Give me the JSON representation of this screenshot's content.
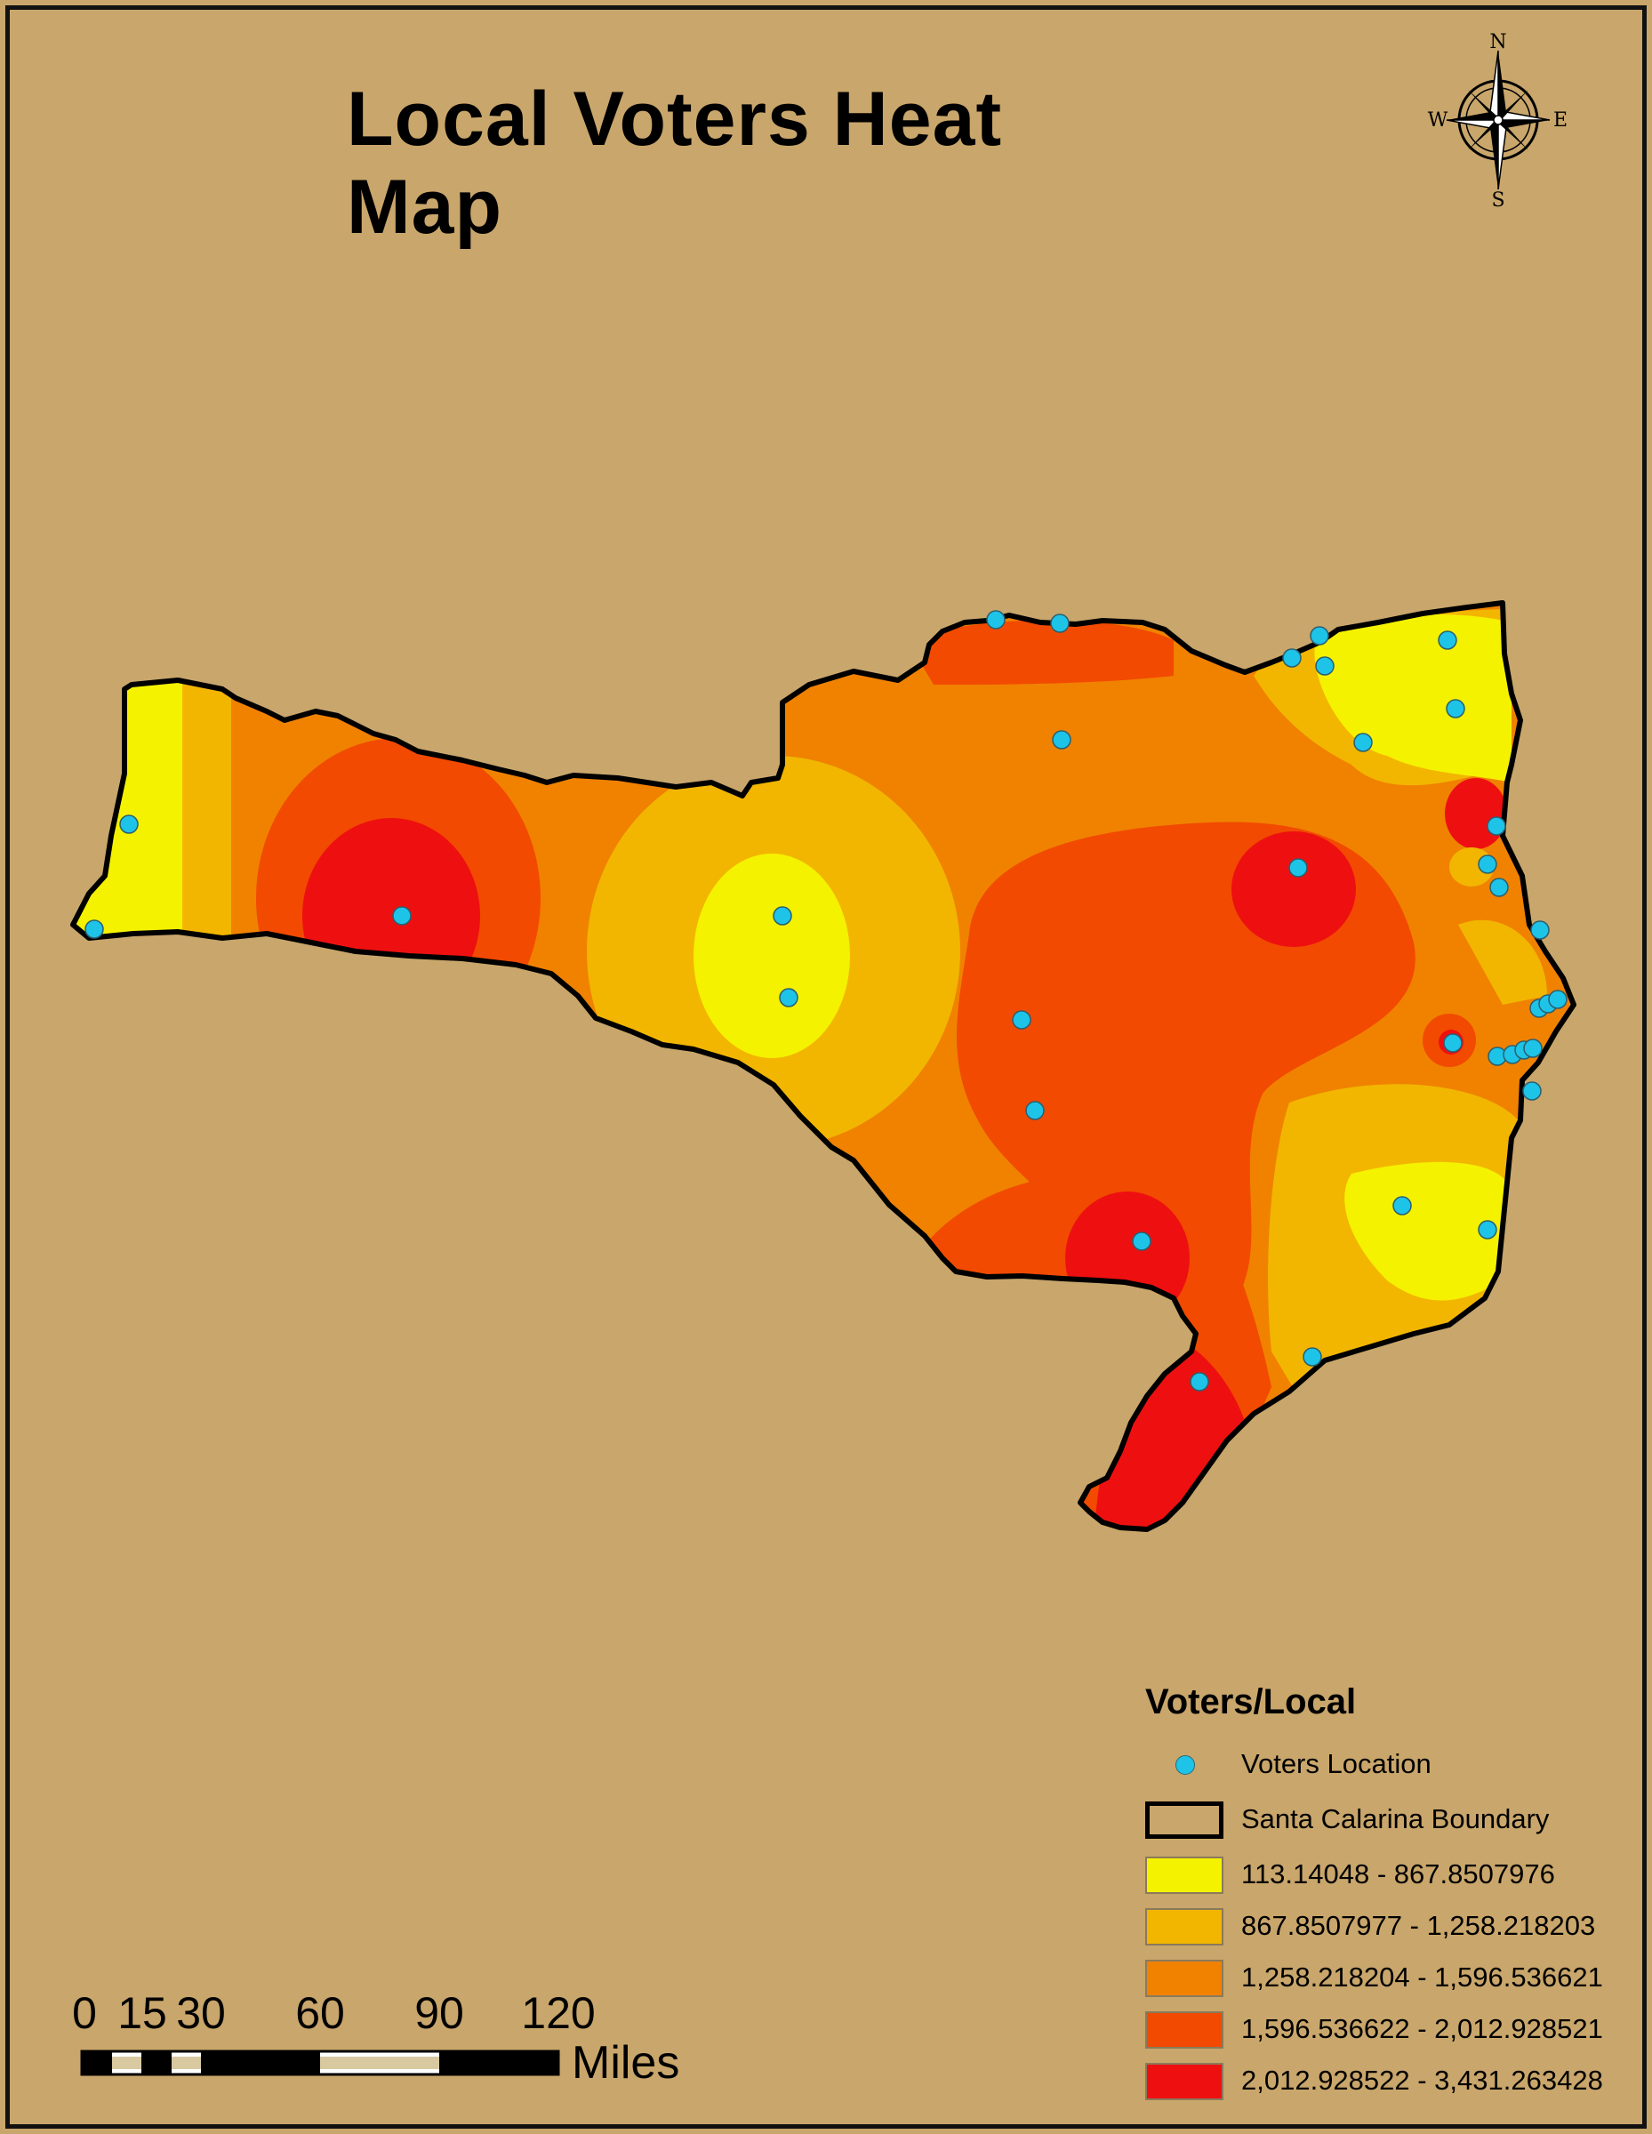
{
  "title": "Local Voters Heat Map",
  "compass": {
    "n": "N",
    "s": "S",
    "e": "E",
    "w": "W"
  },
  "legend": {
    "title": "Voters/Local",
    "points_label": "Voters Location",
    "boundary_label": "Santa Calarina Boundary",
    "classes": [
      {
        "label": "113.14048 - 867.8507976",
        "color": "#f5f200"
      },
      {
        "label": "867.8507977 - 1,258.218203",
        "color": "#f2b600"
      },
      {
        "label": "1,258.218204 - 1,596.536621",
        "color": "#f08200"
      },
      {
        "label": "1,596.536622 - 2,012.928521",
        "color": "#f24a00"
      },
      {
        "label": "2,012.928522 - 3,431.263428",
        "color": "#ee1010"
      }
    ]
  },
  "scale": {
    "ticks": [
      "0",
      "15",
      "30",
      "60",
      "90",
      "120"
    ],
    "unit": "Miles"
  },
  "colors": {
    "background": "#c9a66b",
    "point": "#1ec3e8",
    "boundary": "#000000"
  }
}
